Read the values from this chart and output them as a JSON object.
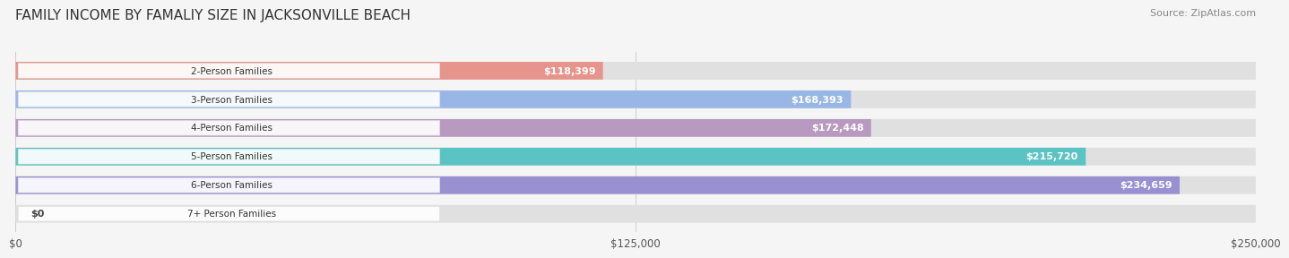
{
  "title": "FAMILY INCOME BY FAMALIY SIZE IN JACKSONVILLE BEACH",
  "source": "Source: ZipAtlas.com",
  "categories": [
    "2-Person Families",
    "3-Person Families",
    "4-Person Families",
    "5-Person Families",
    "6-Person Families",
    "7+ Person Families"
  ],
  "values": [
    118399,
    168393,
    172448,
    215720,
    234659,
    0
  ],
  "bar_colors": [
    "#e8837a",
    "#8aaee8",
    "#b08ab8",
    "#3dbdbd",
    "#8a7fcf",
    "#f0a0b8"
  ],
  "label_texts": [
    "$118,399",
    "$168,393",
    "$172,448",
    "$215,720",
    "$234,659",
    "$0"
  ],
  "max_value": 250000,
  "x_ticks": [
    0,
    125000,
    250000
  ],
  "x_tick_labels": [
    "$0",
    "$125,000",
    "$250,000"
  ],
  "background_color": "#f5f5f5",
  "bar_bg_color": "#e0e0e0",
  "title_fontsize": 11,
  "source_fontsize": 8,
  "label_fontsize": 8,
  "tick_fontsize": 8.5
}
